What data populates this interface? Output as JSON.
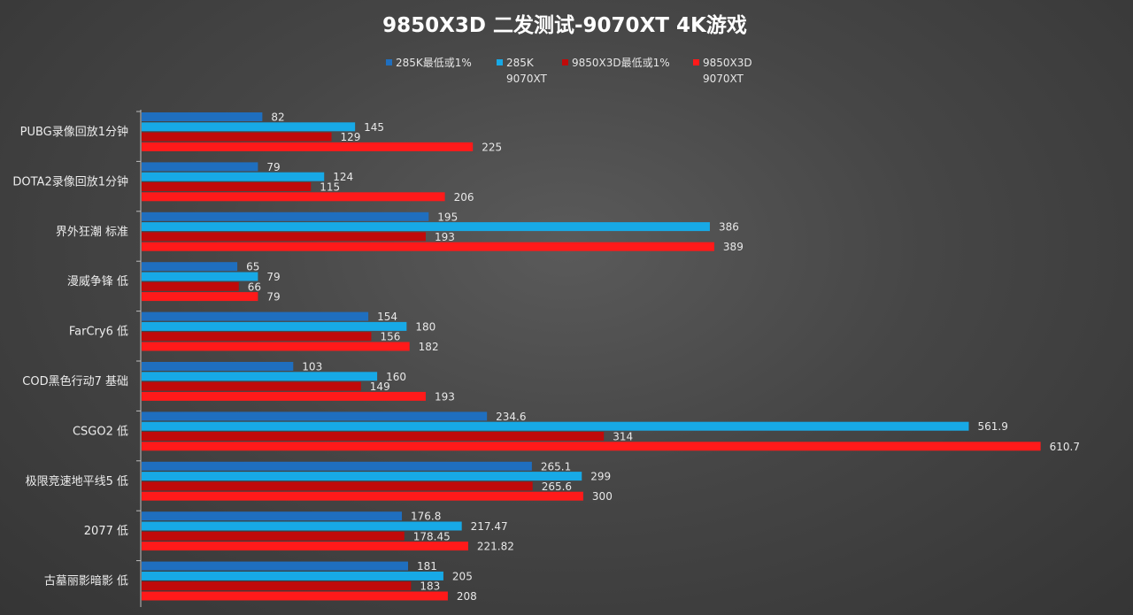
{
  "chart_data": {
    "type": "bar",
    "orientation": "horizontal",
    "title": "9850X3D 二发测试-9070XT 4K游戏",
    "legend_position": "top",
    "grid": false,
    "xlim": [
      0,
      650
    ],
    "categories": [
      "PUBG录像回放1分钟",
      "DOTA2录像回放1分钟",
      "界外狂潮 标准",
      "漫威争锋 低",
      "FarCry6 低",
      "COD黑色行动7 基础",
      "CSGO2 低",
      "极限竞速地平线5 低",
      "2077 低",
      "古墓丽影暗影 低"
    ],
    "series": [
      {
        "name": "285K最低或1%",
        "legend_lines": [
          "285K最低或1%"
        ],
        "color": "#1f6fbf",
        "values": [
          82,
          79,
          195,
          65,
          154,
          103,
          234.6,
          265.1,
          176.8,
          181
        ],
        "labels": [
          "82",
          "79",
          "195",
          "65",
          "154",
          "103",
          "234.6",
          "265.1",
          "176.8",
          "181"
        ]
      },
      {
        "name": "285K 9070XT",
        "legend_lines": [
          "285K",
          "9070XT"
        ],
        "color": "#17a9e6",
        "values": [
          145,
          124,
          386,
          79,
          180,
          160,
          561.9,
          299,
          217.47,
          205
        ],
        "labels": [
          "145",
          "124",
          "386",
          "79",
          "180",
          "160",
          "561.9",
          "299",
          "217.47",
          "205"
        ]
      },
      {
        "name": "9850X3D最低或1%",
        "legend_lines": [
          "9850X3D最低或1%"
        ],
        "color": "#c00a0a",
        "values": [
          129,
          115,
          193,
          66,
          156,
          149,
          314,
          265.6,
          178.45,
          183
        ],
        "labels": [
          "129",
          "115",
          "193",
          "66",
          "156",
          "149",
          "314",
          "265.6",
          "178.45",
          "183"
        ]
      },
      {
        "name": "9850X3D 9070XT",
        "legend_lines": [
          "9850X3D",
          "9070XT"
        ],
        "color": "#ff1a1a",
        "values": [
          225,
          206,
          389,
          79,
          182,
          193,
          610.7,
          300,
          221.82,
          208
        ],
        "labels": [
          "225",
          "206",
          "389",
          "79",
          "182",
          "193",
          "610.7",
          "300",
          "221.82",
          "208"
        ]
      }
    ]
  }
}
